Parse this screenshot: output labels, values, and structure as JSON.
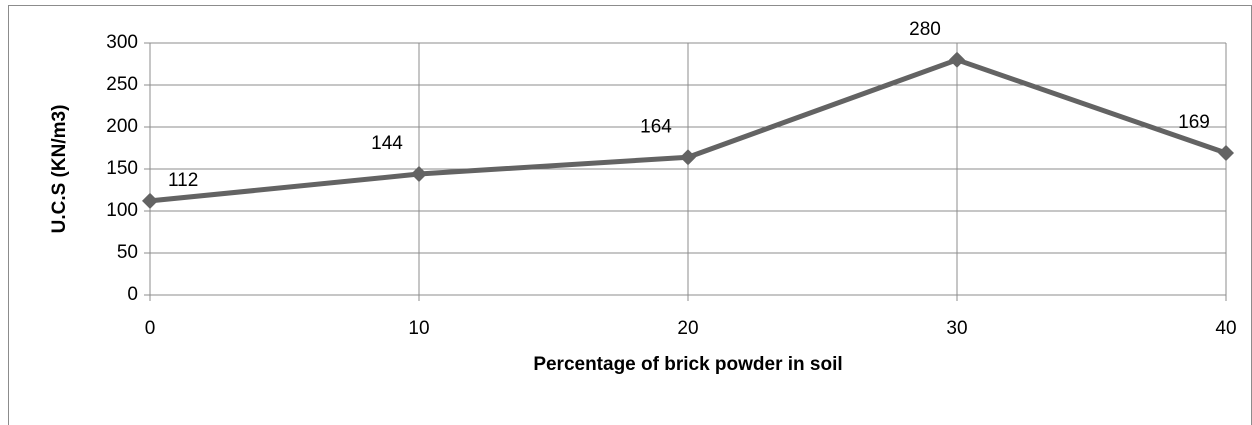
{
  "chart_data": {
    "type": "line",
    "x": [
      0,
      10,
      20,
      30,
      40
    ],
    "values": [
      112,
      144,
      164,
      280,
      169
    ],
    "color": "#636363",
    "x_label": "Percentage of brick powder in soil",
    "y_label": "U.C.S (KN/m3)",
    "xlim": [
      0,
      40
    ],
    "xticks": [
      0,
      10,
      20,
      30,
      40
    ],
    "ylim": [
      0,
      300
    ],
    "yticks": [
      0,
      50,
      100,
      150,
      200,
      250,
      300
    ],
    "grid": true
  }
}
